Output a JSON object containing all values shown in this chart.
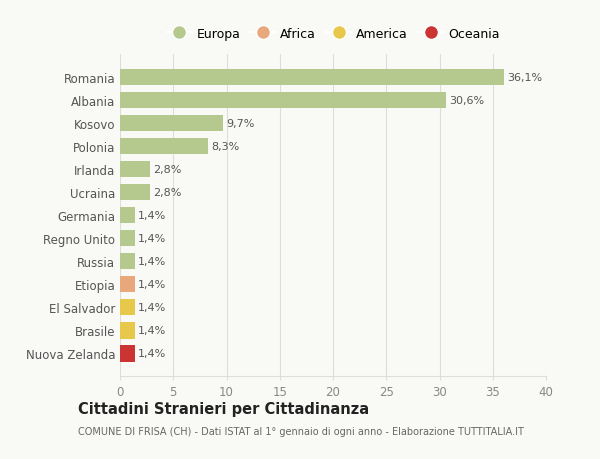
{
  "categories": [
    "Romania",
    "Albania",
    "Kosovo",
    "Polonia",
    "Irlanda",
    "Ucraina",
    "Germania",
    "Regno Unito",
    "Russia",
    "Etiopia",
    "El Salvador",
    "Brasile",
    "Nuova Zelanda"
  ],
  "values": [
    36.1,
    30.6,
    9.7,
    8.3,
    2.8,
    2.8,
    1.4,
    1.4,
    1.4,
    1.4,
    1.4,
    1.4,
    1.4
  ],
  "labels": [
    "36,1%",
    "30,6%",
    "9,7%",
    "8,3%",
    "2,8%",
    "2,8%",
    "1,4%",
    "1,4%",
    "1,4%",
    "1,4%",
    "1,4%",
    "1,4%",
    "1,4%"
  ],
  "colors": [
    "#b5c98e",
    "#b5c98e",
    "#b5c98e",
    "#b5c98e",
    "#b5c98e",
    "#b5c98e",
    "#b5c98e",
    "#b5c98e",
    "#b5c98e",
    "#e8a87c",
    "#e8c84a",
    "#e8c84a",
    "#cc3333"
  ],
  "legend_labels": [
    "Europa",
    "Africa",
    "America",
    "Oceania"
  ],
  "legend_colors": [
    "#b5c98e",
    "#e8a87c",
    "#e8c84a",
    "#cc3333"
  ],
  "xlim": [
    0,
    40
  ],
  "xticks": [
    0,
    5,
    10,
    15,
    20,
    25,
    30,
    35,
    40
  ],
  "title": "Cittadini Stranieri per Cittadinanza",
  "subtitle": "COMUNE DI FRISA (CH) - Dati ISTAT al 1° gennaio di ogni anno - Elaborazione TUTTITALIA.IT",
  "bg_color": "#f9f9f6",
  "grid_color": "#dddddd"
}
